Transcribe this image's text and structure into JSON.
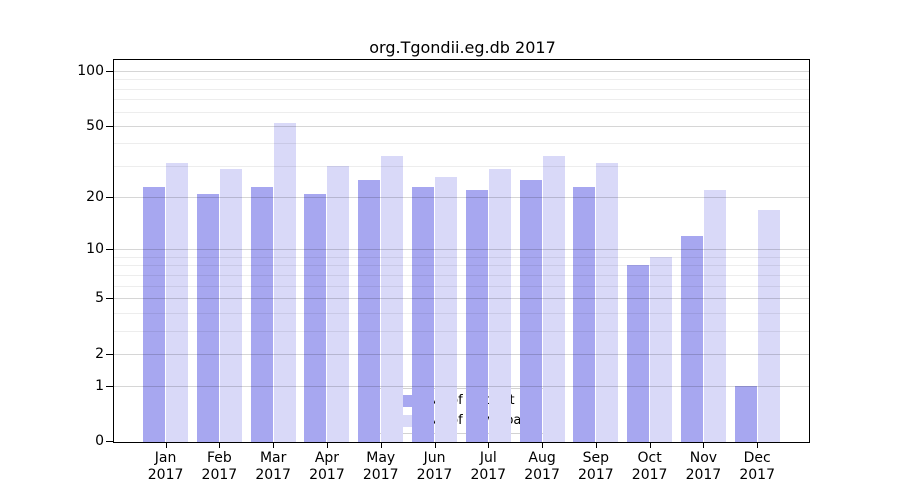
{
  "title": "org.Tgondii.eg.db 2017",
  "legend": {
    "items": [
      {
        "label": "Nb of distinct IPs",
        "color": "#a7a7f0"
      },
      {
        "label": "Nb of downloads",
        "color": "#d9d9f8"
      }
    ]
  },
  "chart_data": {
    "type": "bar",
    "title": "org.Tgondii.eg.db 2017",
    "categories": [
      "Jan 2017",
      "Feb 2017",
      "Mar 2017",
      "Apr 2017",
      "May 2017",
      "Jun 2017",
      "Jul 2017",
      "Aug 2017",
      "Sep 2017",
      "Oct 2017",
      "Nov 2017",
      "Dec 2017"
    ],
    "series": [
      {
        "name": "Nb of distinct IPs",
        "color": "#a7a7f0",
        "values": [
          23,
          21,
          23,
          21,
          25,
          23,
          22,
          25,
          23,
          8,
          12,
          1
        ]
      },
      {
        "name": "Nb of downloads",
        "color": "#d9d9f8",
        "values": [
          31,
          29,
          52,
          30,
          34,
          26,
          29,
          34,
          31,
          9,
          22,
          17
        ]
      }
    ],
    "xlabel": "",
    "ylabel": "",
    "y_axis": {
      "scale": "log1p",
      "tick_values": [
        0,
        1,
        2,
        5,
        10,
        20,
        50,
        100
      ],
      "tick_labels": [
        "0",
        "1",
        "2",
        "5",
        "10",
        "20",
        "50",
        "100"
      ],
      "minor_gridline_values": [
        3,
        4,
        6,
        7,
        8,
        9,
        30,
        40,
        60,
        70,
        80,
        90
      ],
      "range_top": 115
    },
    "grid": "on",
    "legend_position": "bottom-center"
  }
}
